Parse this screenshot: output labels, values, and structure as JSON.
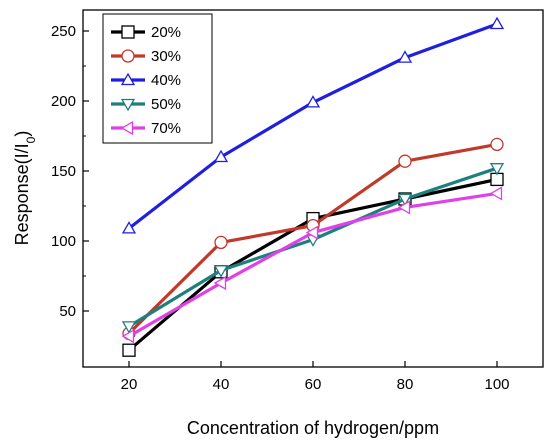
{
  "chart_data": {
    "type": "line",
    "title": "",
    "xlabel": "Concentration of hydrogen/ppm",
    "ylabel": "Response(I/I",
    "ylabel_subscript": "0",
    "ylabel_suffix": ")",
    "x": [
      20,
      40,
      60,
      80,
      100
    ],
    "xticks": [
      20,
      40,
      60,
      80,
      100
    ],
    "yticks": [
      50,
      100,
      150,
      200,
      250
    ],
    "xlim": [
      10,
      110
    ],
    "ylim": [
      10,
      265
    ],
    "grid": false,
    "legend_position": "top-left",
    "series": [
      {
        "name": "20%",
        "values": [
          22,
          78,
          116,
          130,
          144
        ],
        "color": "#000000",
        "marker": "square"
      },
      {
        "name": "30%",
        "values": [
          34,
          99,
          111,
          157,
          169
        ],
        "color": "#c0392b",
        "marker": "circle"
      },
      {
        "name": "40%",
        "values": [
          109,
          160,
          199,
          231,
          255
        ],
        "color": "#1f1fe0",
        "marker": "triangle-up"
      },
      {
        "name": "50%",
        "values": [
          39,
          79,
          101,
          130,
          152
        ],
        "color": "#1f7f7f",
        "marker": "triangle-down"
      },
      {
        "name": "70%",
        "values": [
          32,
          70,
          106,
          124,
          134
        ],
        "color": "#e040e8",
        "marker": "triangle-left"
      }
    ]
  }
}
